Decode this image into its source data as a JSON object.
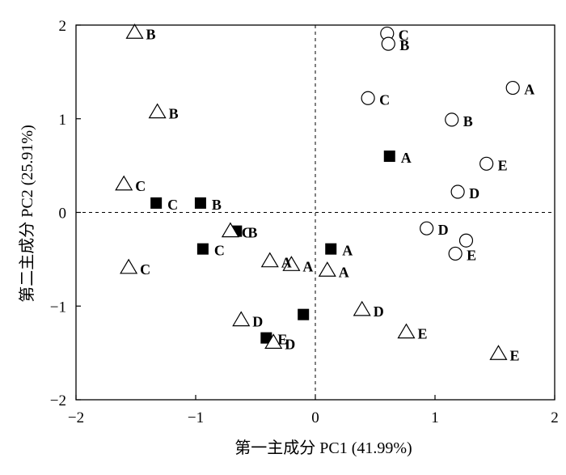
{
  "chart_data": {
    "type": "scatter",
    "xlabel": "第一主成分 PC1 (41.99%)",
    "ylabel": "第二主成分 PC2 (25.91%)",
    "xlim": [
      -2,
      2
    ],
    "ylim": [
      -2,
      2
    ],
    "xticks": [
      "−2",
      "−1",
      "0",
      "1",
      "2"
    ],
    "yticks": [
      "−2",
      "−1",
      "0",
      "1",
      "2"
    ],
    "grid": false,
    "reference_lines": {
      "x": 0,
      "y": 0,
      "style": "dashed"
    },
    "series": [
      {
        "marker": "filled-square",
        "points": [
          {
            "x": 0.62,
            "y": 0.6,
            "label": "A"
          },
          {
            "x": -1.33,
            "y": 0.1,
            "label": "C"
          },
          {
            "x": -0.96,
            "y": 0.1,
            "label": "B"
          },
          {
            "x": -0.66,
            "y": -0.2,
            "label": "B"
          },
          {
            "x": -0.94,
            "y": -0.39,
            "label": "C"
          },
          {
            "x": 0.13,
            "y": -0.39,
            "label": "A"
          },
          {
            "x": -0.1,
            "y": -1.09,
            "label": ""
          },
          {
            "x": -0.41,
            "y": -1.34,
            "label": "E"
          }
        ]
      },
      {
        "marker": "open-triangle",
        "points": [
          {
            "x": -1.51,
            "y": 1.92,
            "label": "B"
          },
          {
            "x": -1.32,
            "y": 1.07,
            "label": "B"
          },
          {
            "x": -1.6,
            "y": 0.3,
            "label": "C"
          },
          {
            "x": -0.71,
            "y": -0.2,
            "label": "C"
          },
          {
            "x": -0.38,
            "y": -0.52,
            "label": "A"
          },
          {
            "x": -0.2,
            "y": -0.56,
            "label": "A"
          },
          {
            "x": 0.1,
            "y": -0.62,
            "label": "A"
          },
          {
            "x": -1.56,
            "y": -0.59,
            "label": "C"
          },
          {
            "x": -0.62,
            "y": -1.15,
            "label": "D"
          },
          {
            "x": -0.35,
            "y": -1.39,
            "label": "D"
          },
          {
            "x": 0.39,
            "y": -1.04,
            "label": "D"
          },
          {
            "x": 0.76,
            "y": -1.28,
            "label": "E"
          },
          {
            "x": 1.53,
            "y": -1.51,
            "label": "E"
          }
        ]
      },
      {
        "marker": "open-circle",
        "points": [
          {
            "x": 0.6,
            "y": 1.91,
            "label": "C"
          },
          {
            "x": 0.61,
            "y": 1.8,
            "label": "B"
          },
          {
            "x": 0.44,
            "y": 1.22,
            "label": "C"
          },
          {
            "x": 1.65,
            "y": 1.33,
            "label": "A"
          },
          {
            "x": 1.14,
            "y": 0.99,
            "label": "B"
          },
          {
            "x": 1.43,
            "y": 0.52,
            "label": "E"
          },
          {
            "x": 1.19,
            "y": 0.22,
            "label": "D"
          },
          {
            "x": 0.93,
            "y": -0.17,
            "label": "D"
          },
          {
            "x": 1.26,
            "y": -0.3,
            "label": ""
          },
          {
            "x": 1.17,
            "y": -0.44,
            "label": "E"
          }
        ]
      }
    ]
  }
}
